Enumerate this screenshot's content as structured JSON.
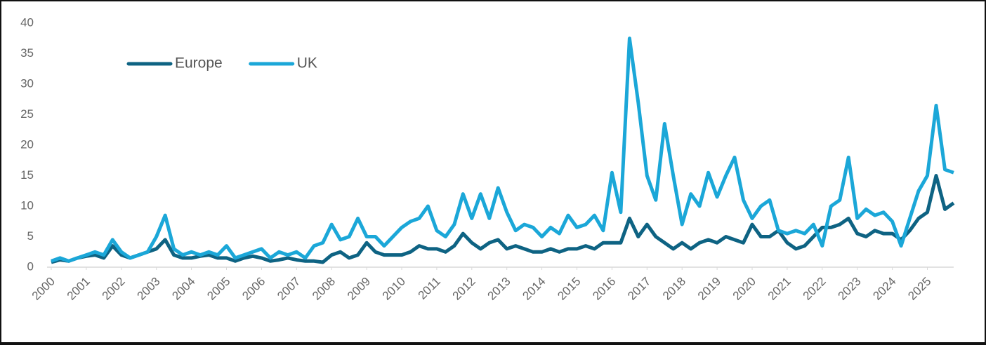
{
  "chart_data": {
    "type": "line",
    "x": [
      2000,
      2000.25,
      2000.5,
      2000.75,
      2001,
      2001.25,
      2001.5,
      2001.75,
      2002,
      2002.25,
      2002.5,
      2002.75,
      2003,
      2003.25,
      2003.5,
      2003.75,
      2004,
      2004.25,
      2004.5,
      2004.75,
      2005,
      2005.25,
      2005.5,
      2005.75,
      2006,
      2006.25,
      2006.5,
      2006.75,
      2007,
      2007.25,
      2007.5,
      2007.75,
      2008,
      2008.25,
      2008.5,
      2008.75,
      2009,
      2009.25,
      2009.5,
      2009.75,
      2010,
      2010.25,
      2010.5,
      2010.75,
      2011,
      2011.25,
      2011.5,
      2011.75,
      2012,
      2012.25,
      2012.5,
      2012.75,
      2013,
      2013.25,
      2013.5,
      2013.75,
      2014,
      2014.25,
      2014.5,
      2014.75,
      2015,
      2015.25,
      2015.5,
      2015.75,
      2016,
      2016.25,
      2016.5,
      2016.75,
      2017,
      2017.25,
      2017.5,
      2017.75,
      2018,
      2018.25,
      2018.5,
      2018.75,
      2019,
      2019.25,
      2019.5,
      2019.75,
      2020,
      2020.25,
      2020.5,
      2020.75,
      2021,
      2021.25,
      2021.5,
      2021.75,
      2022,
      2022.25,
      2022.5,
      2022.75,
      2023,
      2023.25,
      2023.5,
      2023.75,
      2024,
      2024.25,
      2024.5,
      2024.75,
      2025,
      2025.25,
      2025.5,
      2025.75
    ],
    "series": [
      {
        "name": "Europe",
        "color": "#0e6383",
        "values": [
          0.8,
          1.2,
          1,
          1.5,
          1.8,
          2,
          1.5,
          3.5,
          2,
          1.5,
          2,
          2.5,
          3,
          4.5,
          2,
          1.5,
          1.5,
          1.8,
          2,
          1.5,
          1.5,
          1,
          1.5,
          1.8,
          1.5,
          1,
          1.2,
          1.5,
          1.2,
          1,
          1,
          0.8,
          2,
          2.5,
          1.5,
          2,
          4,
          2.5,
          2,
          2,
          2,
          2.5,
          3.5,
          3,
          3,
          2.5,
          3.5,
          5.5,
          4,
          3,
          4,
          4.5,
          3,
          3.5,
          3,
          2.5,
          2.5,
          3,
          2.5,
          3,
          3,
          3.5,
          3,
          4,
          4,
          4,
          8,
          5,
          7,
          5,
          4,
          3,
          4,
          3,
          4,
          4.5,
          4,
          5,
          4.5,
          4,
          7,
          5,
          5,
          6,
          4,
          3,
          3.5,
          5,
          6.5,
          6.5,
          7,
          8,
          5.5,
          5,
          6,
          5.5,
          5.5,
          4.5,
          6,
          8,
          9,
          15,
          9.5,
          10.5
        ]
      },
      {
        "name": "UK",
        "color": "#1ba7d8",
        "values": [
          1,
          1.5,
          1,
          1.5,
          2,
          2.5,
          2,
          4.5,
          2.5,
          1.5,
          2,
          2.5,
          5,
          8.5,
          3,
          2,
          2.5,
          2,
          2.5,
          2,
          3.5,
          1.5,
          2,
          2.5,
          3,
          1.5,
          2.5,
          2,
          2.5,
          1.5,
          3.5,
          4,
          7,
          4.5,
          5,
          8,
          5,
          5,
          3.5,
          5,
          6.5,
          7.5,
          8,
          10,
          6,
          5,
          7,
          12,
          8,
          12,
          8,
          13,
          9,
          6,
          7,
          6.5,
          5,
          6.5,
          5.5,
          8.5,
          6.5,
          7,
          8.5,
          6,
          15.5,
          9,
          37.5,
          27,
          15,
          11,
          23.5,
          15,
          7,
          12,
          10,
          15.5,
          11.5,
          15,
          18,
          11,
          8,
          10,
          11,
          6,
          5.5,
          6,
          5.5,
          7,
          3.5,
          10,
          11,
          18,
          8,
          9.5,
          8.5,
          9,
          7.5,
          3.5,
          8,
          12.5,
          15,
          26.5,
          16,
          15.5
        ]
      }
    ],
    "xlim": [
      2000,
      2025.75
    ],
    "xticks": [
      2000,
      2001,
      2002,
      2003,
      2004,
      2005,
      2006,
      2007,
      2008,
      2009,
      2010,
      2011,
      2012,
      2013,
      2014,
      2015,
      2016,
      2017,
      2018,
      2019,
      2020,
      2021,
      2022,
      2023,
      2024,
      2025
    ],
    "ylim": [
      0,
      40
    ],
    "yticks": [
      0,
      5,
      10,
      15,
      20,
      25,
      30,
      35,
      40
    ],
    "grid": false,
    "legend": "upper left"
  }
}
